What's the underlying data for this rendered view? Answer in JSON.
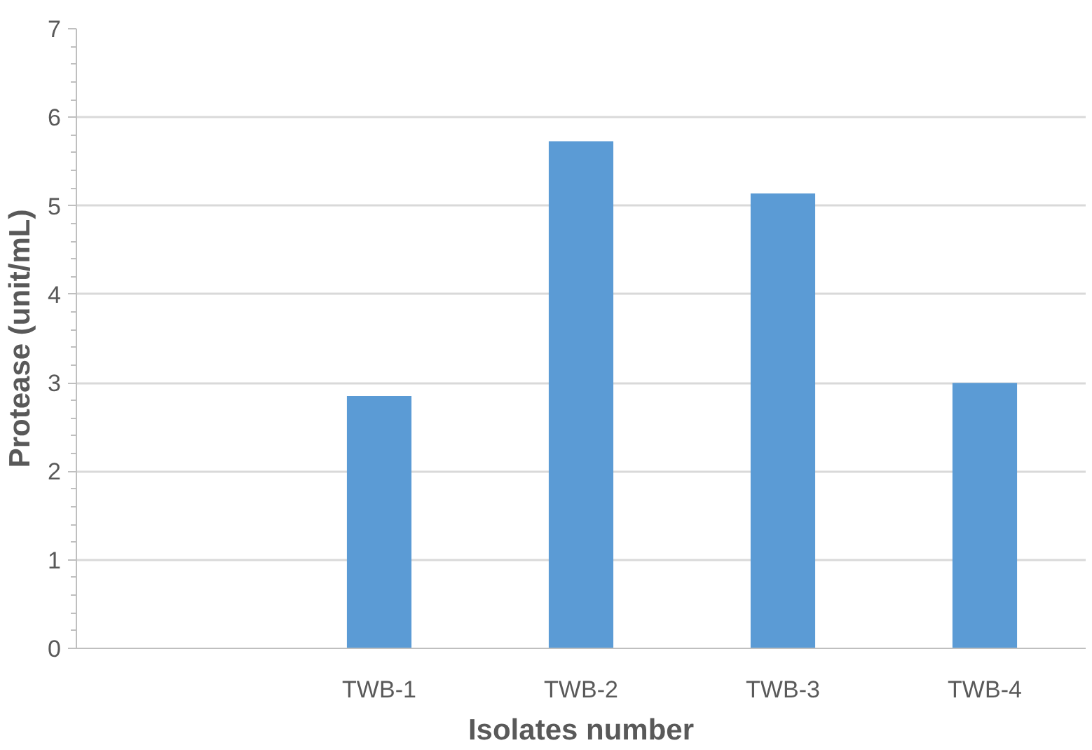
{
  "chart_data": {
    "type": "bar",
    "xlabel": "Isolates number",
    "ylabel": "Protease (unit/mL)",
    "categories": [
      null,
      "TWB-1",
      "TWB-2",
      "TWB-3",
      "TWB-4"
    ],
    "values": [
      null,
      2.85,
      5.73,
      5.14,
      3.0
    ],
    "color": "#5b9bd5",
    "ylim": [
      0,
      7
    ],
    "yticks": [
      0,
      1,
      2,
      3,
      4,
      5,
      6,
      7
    ],
    "grid": "y"
  }
}
